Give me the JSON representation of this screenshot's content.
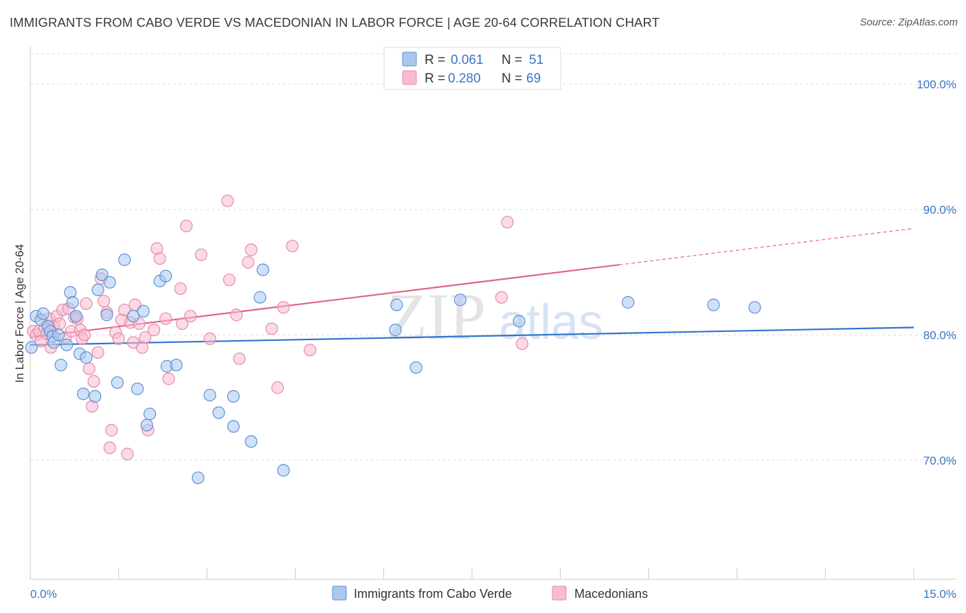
{
  "title": "IMMIGRANTS FROM CABO VERDE VS MACEDONIAN IN LABOR FORCE | AGE 20-64 CORRELATION CHART",
  "source": "Source: ZipAtlas.com",
  "watermark": {
    "zip": "ZIP",
    "atlas": "atlas"
  },
  "colors": {
    "blue_fill": "#a9c8f0",
    "blue_stroke": "#5b8fd6",
    "blue_line": "#2f73d0",
    "pink_fill": "#f7bcd0",
    "pink_stroke": "#e38aa8",
    "pink_line": "#e0628c",
    "tick_label": "#3a73c4",
    "grid": "#dedede"
  },
  "legend": {
    "rows": [
      {
        "r_label": "R = ",
        "r_value": "0.061",
        "n_label": "N = ",
        "n_value": "51"
      },
      {
        "r_label": "R = ",
        "r_value": "0.280",
        "n_label": "N = ",
        "n_value": "69"
      }
    ]
  },
  "chart_data": {
    "type": "scatter",
    "title": "IMMIGRANTS FROM CABO VERDE VS MACEDONIAN IN LABOR FORCE | AGE 20-64 CORRELATION CHART",
    "xlabel": "",
    "ylabel": "In Labor Force | Age 20-64",
    "xlim": [
      0,
      15
    ],
    "ylim": [
      60.5,
      103
    ],
    "x_tick_labels": [
      "0.0%",
      "15.0%"
    ],
    "y_ticks": [
      {
        "value": 100,
        "label": "100.0%"
      },
      {
        "value": 90,
        "label": "90.0%"
      },
      {
        "value": 80,
        "label": "80.0%"
      },
      {
        "value": 70,
        "label": "70.0%"
      }
    ],
    "grid": true,
    "legend_position": "top-center",
    "series": [
      {
        "name": "Immigrants from Cabo Verde",
        "color": "blue",
        "R": 0.061,
        "N": 51,
        "trend": {
          "x": [
            0,
            15
          ],
          "y": [
            79.2,
            80.6
          ]
        },
        "points": [
          [
            0.02,
            79.0
          ],
          [
            0.1,
            81.5
          ],
          [
            0.18,
            81.2
          ],
          [
            0.22,
            81.7
          ],
          [
            0.3,
            80.7
          ],
          [
            0.34,
            80.3
          ],
          [
            0.38,
            79.9
          ],
          [
            0.4,
            79.4
          ],
          [
            0.48,
            80.0
          ],
          [
            0.52,
            77.6
          ],
          [
            0.62,
            79.2
          ],
          [
            0.68,
            83.4
          ],
          [
            0.72,
            82.6
          ],
          [
            0.78,
            81.5
          ],
          [
            0.84,
            78.5
          ],
          [
            0.9,
            75.3
          ],
          [
            0.95,
            78.2
          ],
          [
            1.1,
            75.1
          ],
          [
            1.15,
            83.6
          ],
          [
            1.22,
            84.8
          ],
          [
            1.3,
            81.6
          ],
          [
            1.35,
            84.2
          ],
          [
            1.48,
            76.2
          ],
          [
            1.6,
            86.0
          ],
          [
            1.75,
            81.5
          ],
          [
            1.82,
            75.7
          ],
          [
            1.92,
            81.9
          ],
          [
            1.98,
            72.8
          ],
          [
            2.03,
            73.7
          ],
          [
            2.2,
            84.3
          ],
          [
            2.3,
            84.7
          ],
          [
            2.32,
            77.5
          ],
          [
            2.48,
            77.6
          ],
          [
            2.85,
            68.6
          ],
          [
            3.05,
            75.2
          ],
          [
            3.2,
            73.8
          ],
          [
            3.45,
            72.7
          ],
          [
            3.45,
            75.1
          ],
          [
            3.75,
            71.5
          ],
          [
            3.9,
            83.0
          ],
          [
            3.95,
            85.2
          ],
          [
            4.3,
            69.2
          ],
          [
            6.2,
            80.4
          ],
          [
            6.22,
            82.4
          ],
          [
            6.55,
            77.4
          ],
          [
            7.3,
            82.8
          ],
          [
            8.3,
            81.1
          ],
          [
            10.15,
            82.6
          ],
          [
            11.6,
            82.4
          ],
          [
            12.3,
            82.2
          ]
        ]
      },
      {
        "name": "Macedonians",
        "color": "pink",
        "R": 0.28,
        "N": 69,
        "trend": {
          "x": [
            0,
            10.0
          ],
          "y": [
            79.8,
            85.6
          ]
        },
        "trend_dashed": {
          "x": [
            10.0,
            15
          ],
          "y": [
            85.6,
            88.5
          ]
        },
        "points": [
          [
            0.05,
            80.3
          ],
          [
            0.1,
            80.0
          ],
          [
            0.15,
            80.3
          ],
          [
            0.18,
            79.5
          ],
          [
            0.25,
            80.6
          ],
          [
            0.28,
            80.1
          ],
          [
            0.32,
            81.3
          ],
          [
            0.35,
            79.0
          ],
          [
            0.4,
            80.7
          ],
          [
            0.45,
            81.5
          ],
          [
            0.5,
            80.9
          ],
          [
            0.55,
            82.0
          ],
          [
            0.6,
            79.8
          ],
          [
            0.65,
            82.1
          ],
          [
            0.7,
            80.3
          ],
          [
            0.75,
            81.4
          ],
          [
            0.8,
            81.3
          ],
          [
            0.85,
            80.4
          ],
          [
            0.88,
            79.7
          ],
          [
            0.92,
            80.0
          ],
          [
            0.95,
            82.5
          ],
          [
            1.0,
            77.3
          ],
          [
            1.05,
            74.3
          ],
          [
            1.08,
            76.3
          ],
          [
            1.15,
            78.6
          ],
          [
            1.2,
            84.5
          ],
          [
            1.25,
            82.7
          ],
          [
            1.3,
            81.8
          ],
          [
            1.35,
            71.0
          ],
          [
            1.38,
            72.4
          ],
          [
            1.45,
            80.2
          ],
          [
            1.5,
            79.7
          ],
          [
            1.55,
            81.2
          ],
          [
            1.6,
            82.0
          ],
          [
            1.65,
            70.5
          ],
          [
            1.7,
            81.0
          ],
          [
            1.75,
            79.4
          ],
          [
            1.78,
            82.4
          ],
          [
            1.85,
            80.9
          ],
          [
            1.9,
            79.0
          ],
          [
            1.95,
            79.8
          ],
          [
            2.0,
            72.4
          ],
          [
            2.1,
            80.4
          ],
          [
            2.15,
            86.9
          ],
          [
            2.2,
            86.1
          ],
          [
            2.3,
            81.3
          ],
          [
            2.35,
            76.5
          ],
          [
            2.55,
            83.7
          ],
          [
            2.58,
            80.9
          ],
          [
            2.65,
            88.7
          ],
          [
            2.72,
            81.5
          ],
          [
            2.9,
            86.4
          ],
          [
            3.05,
            79.7
          ],
          [
            3.35,
            90.7
          ],
          [
            3.38,
            84.4
          ],
          [
            3.5,
            81.6
          ],
          [
            3.55,
            78.1
          ],
          [
            3.7,
            85.8
          ],
          [
            3.75,
            86.8
          ],
          [
            4.1,
            80.5
          ],
          [
            4.2,
            75.8
          ],
          [
            4.3,
            82.2
          ],
          [
            4.45,
            87.1
          ],
          [
            4.75,
            78.8
          ],
          [
            8.0,
            83.0
          ],
          [
            8.1,
            89.0
          ],
          [
            8.35,
            79.3
          ]
        ]
      }
    ]
  }
}
